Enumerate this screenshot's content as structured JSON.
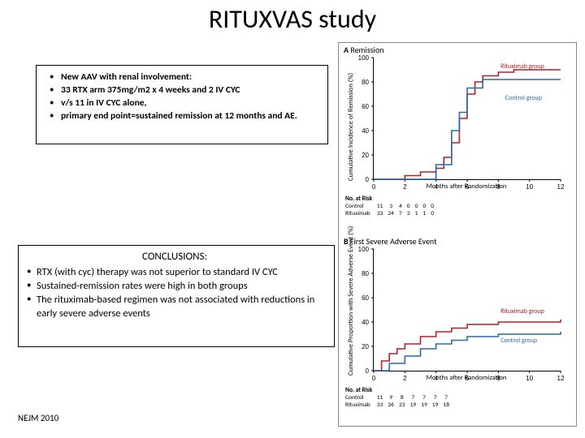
{
  "title": "RITUXVAS study",
  "design": [
    "New AAV with renal involvement:",
    "33 RTX arm 375mg/m2 x 4 weeks  and 2 IV CYC",
    "v/s 11 in IV CYC alone,",
    "primary end point=sustained remission at 12 months and AE."
  ],
  "conclusions": {
    "heading": "CONCLUSIONS:",
    "items": [
      "RTX (with cyc) therapy was not superior to standard IV CYC",
      "Sustained-remission rates were high in both groups",
      "The rituximab-based regimen was not associated with reductions in early severe adverse events"
    ]
  },
  "citation": "NEJM 2010",
  "figure": {
    "colors": {
      "rtx": "#b0202a",
      "ctrl": "#2a6aa8",
      "axis": "#000000"
    },
    "line_width": 1.6,
    "risk_header": "No. at Risk",
    "a": {
      "letter": "A",
      "subtitle": "Remission",
      "ylabel": "Cumulative Incidence of Remission (%)",
      "xlabel": "Months after Randomization",
      "xlim": [
        0,
        12
      ],
      "ylim": [
        0,
        100
      ],
      "xticks": [
        0,
        2,
        4,
        6,
        8,
        10,
        12
      ],
      "yticks": [
        0,
        20,
        40,
        60,
        80,
        100
      ],
      "series": [
        {
          "label": "Rituximab group",
          "color_key": "rtx",
          "points": [
            [
              0,
              0
            ],
            [
              2,
              3
            ],
            [
              3,
              6
            ],
            [
              4,
              9
            ],
            [
              4.5,
              18
            ],
            [
              5,
              30
            ],
            [
              5.5,
              50
            ],
            [
              6,
              70
            ],
            [
              6.5,
              80
            ],
            [
              7,
              85
            ],
            [
              8,
              88
            ],
            [
              9,
              90
            ],
            [
              12,
              90
            ]
          ],
          "label_pos": [
            8.2,
            92
          ]
        },
        {
          "label": "Control group",
          "color_key": "ctrl",
          "points": [
            [
              0,
              0
            ],
            [
              3,
              0
            ],
            [
              4,
              12
            ],
            [
              4.5,
              12
            ],
            [
              5,
              40
            ],
            [
              5.5,
              55
            ],
            [
              6,
              75
            ],
            [
              7,
              82
            ],
            [
              12,
              82
            ]
          ],
          "label_pos": [
            8.5,
            66
          ]
        }
      ],
      "risk": {
        "rows": [
          {
            "label": "Control",
            "vals": [
              11,
              3,
              4,
              0,
              0,
              0,
              0
            ]
          },
          {
            "label": "Rituximab",
            "vals": [
              33,
              24,
              7,
              3,
              1,
              1,
              0
            ]
          }
        ]
      }
    },
    "b": {
      "letter": "B",
      "subtitle": "First Severe Adverse Event",
      "ylabel": "Cumulative Proportion with Severe Adverse Event (%)",
      "xlabel": "Months after Randomization",
      "xlim": [
        0,
        12
      ],
      "ylim": [
        0,
        100
      ],
      "xticks": [
        0,
        2,
        4,
        6,
        8,
        10,
        12
      ],
      "yticks": [
        0,
        20,
        40,
        60,
        80,
        100
      ],
      "series": [
        {
          "label": "Rituximab group",
          "color_key": "rtx",
          "points": [
            [
              0,
              0
            ],
            [
              0.5,
              8
            ],
            [
              1,
              14
            ],
            [
              1.5,
              18
            ],
            [
              2,
              22
            ],
            [
              3,
              28
            ],
            [
              4,
              32
            ],
            [
              5,
              35
            ],
            [
              6,
              38
            ],
            [
              8,
              40
            ],
            [
              12,
              42
            ]
          ],
          "label_pos": [
            8.2,
            48
          ]
        },
        {
          "label": "Control group",
          "color_key": "ctrl",
          "points": [
            [
              0,
              0
            ],
            [
              1,
              6
            ],
            [
              2,
              12
            ],
            [
              3,
              18
            ],
            [
              4,
              22
            ],
            [
              5,
              25
            ],
            [
              6,
              28
            ],
            [
              8,
              30
            ],
            [
              12,
              32
            ]
          ],
          "label_pos": [
            8.2,
            24
          ]
        }
      ],
      "risk": {
        "rows": [
          {
            "label": "Control",
            "vals": [
              11,
              9,
              8,
              7,
              7,
              7,
              7
            ]
          },
          {
            "label": "Rituximab",
            "vals": [
              33,
              26,
              23,
              19,
              19,
              19,
              18
            ]
          }
        ]
      }
    }
  }
}
